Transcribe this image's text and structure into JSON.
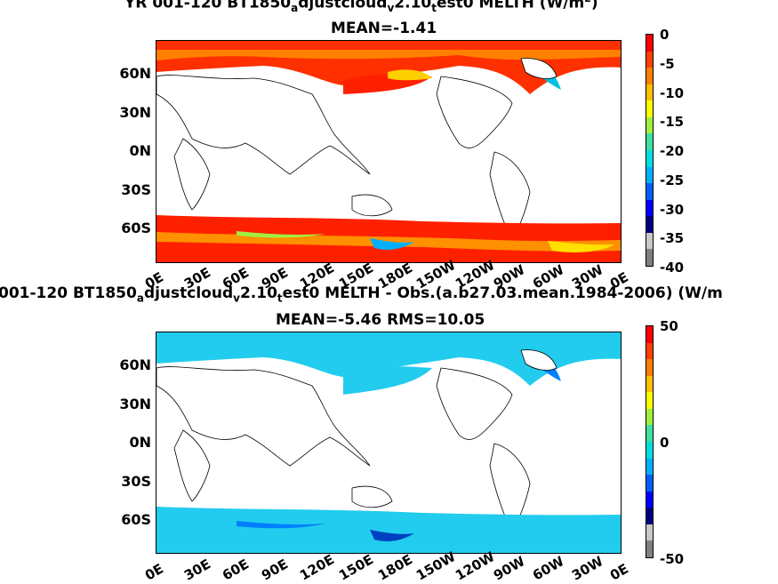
{
  "panel1": {
    "title_parts": [
      "YR 001-120 BT1850",
      "a",
      "djustcloud",
      "v",
      "2.10",
      "t",
      "est0  MELTH (W/m",
      "2",
      ")"
    ],
    "subtitle": "MEAN=-1.41",
    "colorbar_ticks": [
      "0",
      "-5",
      "-10",
      "-15",
      "-20",
      "-25",
      "-30",
      "-35",
      "-40"
    ]
  },
  "panel2": {
    "title_parts": [
      "001-120 BT1850",
      "a",
      "djustcloud",
      "v",
      "2.10",
      "t",
      "est0 MELTH - Obs.(a.b27.03.mean.1984-2006) (W/m"
    ],
    "subtitle": "MEAN=-5.46 RMS=10.05",
    "colorbar_ticks": [
      "50",
      "0",
      "-50"
    ]
  },
  "lat_ticks": [
    "60N",
    "30N",
    "0N",
    "30S",
    "60S"
  ],
  "lon_ticks": [
    "0E",
    "30E",
    "60E",
    "90E",
    "120E",
    "150E",
    "180E",
    "150W",
    "120W",
    "90W",
    "60W",
    "30W",
    "0E"
  ],
  "colors": {
    "colorbar1": [
      "#808080",
      "#c8c8c8",
      "#000080",
      "#0000ff",
      "#0060ff",
      "#00b0ff",
      "#00e0e0",
      "#40e0a0",
      "#a0f040",
      "#ffff00",
      "#ffc000",
      "#ff8000",
      "#ff4000",
      "#ff0000"
    ],
    "colorbar2": [
      "#808080",
      "#c8c8c8",
      "#000080",
      "#0000ff",
      "#0060ff",
      "#00b0ff",
      "#00e0e0",
      "#40e0a0",
      "#a0f040",
      "#ffff00",
      "#ffc000",
      "#ff8000",
      "#ff4000",
      "#ff0000"
    ],
    "ocean_ice1": "#ff2000",
    "ocean_ice2": "#22ccee"
  }
}
